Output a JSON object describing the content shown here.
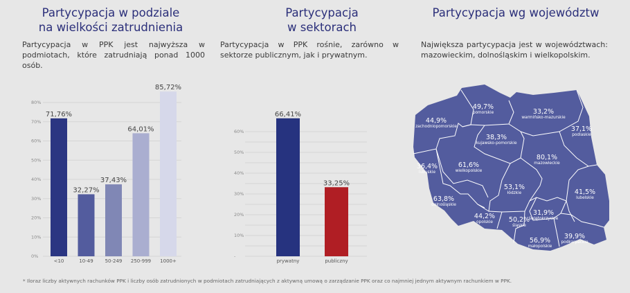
{
  "sections": [
    {
      "title_line1": "Partycypacja w podziale",
      "title_line2": "na wielkości zatrudnienia",
      "description": "Partycypacja w PPK jest najwyższa w podmiotach, które zatrudniają ponad 1000 osób."
    },
    {
      "title_line1": "Partycypacja",
      "title_line2": "w sektorach",
      "description": "Partycypacja w PPK rośnie, zarówno w sektorze publicznym, jak i prywatnym."
    },
    {
      "title_line1": "Partycypacja wg województw",
      "title_line2": "",
      "description": "Największa partycypacja jest w województwach: mazowieckim, dolnośląskim i wielkopolskim."
    }
  ],
  "chart_data": [
    {
      "type": "bar",
      "categories": [
        "<10",
        "10-49",
        "50-249",
        "250-999",
        "1000+"
      ],
      "values": [
        71.76,
        32.27,
        37.43,
        64.01,
        85.72
      ],
      "data_labels": [
        "71,76%",
        "32,27%",
        "37,43%",
        "64,01%",
        "85,72%"
      ],
      "colors": [
        "#2b3682",
        "#535c9e",
        "#8087b5",
        "#aaaed0",
        "#d6d8ea"
      ],
      "ylim": [
        0,
        85
      ],
      "yticks": [
        "0%",
        "10%",
        "20%",
        "30%",
        "40%",
        "50%",
        "60%",
        "70%",
        "80%"
      ],
      "grid": true
    },
    {
      "type": "bar",
      "categories": [
        "prywatny",
        "publiczny"
      ],
      "values": [
        66.41,
        33.25
      ],
      "data_labels": [
        "66,41%",
        "33,25%"
      ],
      "colors": [
        "#26337f",
        "#b01e24"
      ],
      "ylim": [
        0,
        65
      ],
      "yticks": [
        "-",
        "10%",
        "20%",
        "30%",
        "40%",
        "50%",
        "60%"
      ],
      "grid": true
    },
    {
      "type": "map",
      "fill": "#535c9e",
      "regions": [
        {
          "name": "zachodniopomorskie",
          "label": "44,9%",
          "value": 44.9
        },
        {
          "name": "pomorskie",
          "label": "49,7%",
          "value": 49.7
        },
        {
          "name": "warmińsko-mazurskie",
          "label": "33,2%",
          "value": 33.2
        },
        {
          "name": "podlaskie",
          "label": "37,1%",
          "value": 37.1
        },
        {
          "name": "kujawsko-pomorskie",
          "label": "38,3%",
          "value": 38.3
        },
        {
          "name": "mazowieckie",
          "label": "80,1%",
          "value": 80.1
        },
        {
          "name": "lubuskie",
          "label": "36,4%",
          "value": 36.4
        },
        {
          "name": "wielkopolskie",
          "label": "61,6%",
          "value": 61.6
        },
        {
          "name": "łódzkie",
          "label": "53,1%",
          "value": 53.1
        },
        {
          "name": "lubelskie",
          "label": "41,5%",
          "value": 41.5
        },
        {
          "name": "dolnośląskie",
          "label": "63,8%",
          "value": 63.8
        },
        {
          "name": "opolskie",
          "label": "44,2%",
          "value": 44.2
        },
        {
          "name": "śląskie",
          "label": "50,2%",
          "value": 50.2
        },
        {
          "name": "świętokrzyskie",
          "label": "31,9%",
          "value": 31.9
        },
        {
          "name": "podkarpackie",
          "label": "39,9%",
          "value": 39.9
        },
        {
          "name": "małopolskie",
          "label": "56,9%",
          "value": 56.9
        }
      ]
    }
  ],
  "footnote": "* Iloraz liczby aktywnych rachunków PPK i liczby osób zatrudnionych w podmiotach zatrudniających z aktywną umową o zarządzanie PPK oraz co najmniej jednym aktywnym rachunkiem w PPK."
}
